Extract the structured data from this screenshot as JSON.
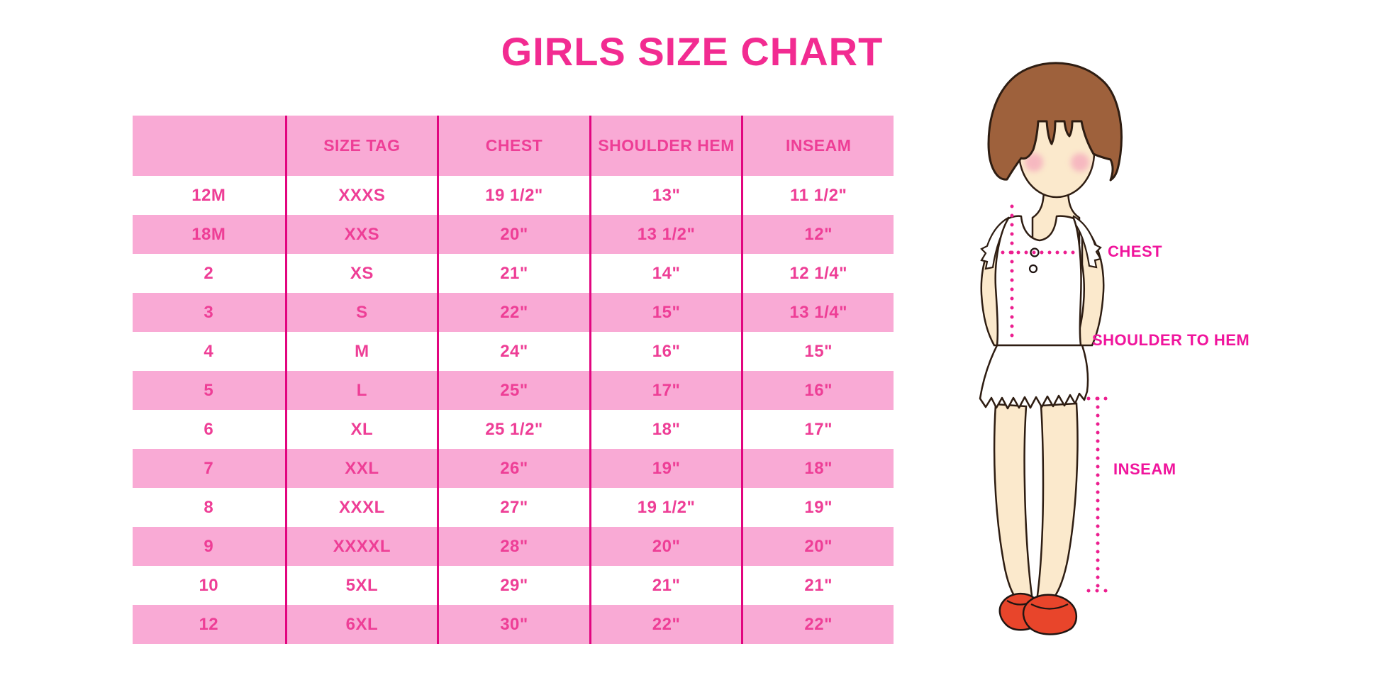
{
  "title": "GIRLS SIZE CHART",
  "chart_data": {
    "type": "table",
    "title": "GIRLS SIZE CHART",
    "columns": [
      "",
      "SIZE TAG",
      "CHEST",
      "SHOULDER HEM",
      "INSEAM"
    ],
    "rows": [
      [
        "12M",
        "XXXS",
        "19 1/2\"",
        "13\"",
        "11 1/2\""
      ],
      [
        "18M",
        "XXS",
        "20\"",
        "13 1/2\"",
        "12\""
      ],
      [
        "2",
        "XS",
        "21\"",
        "14\"",
        "12 1/4\""
      ],
      [
        "3",
        "S",
        "22\"",
        "15\"",
        "13 1/4\""
      ],
      [
        "4",
        "M",
        "24\"",
        "16\"",
        "15\""
      ],
      [
        "5",
        "L",
        "25\"",
        "17\"",
        "16\""
      ],
      [
        "6",
        "XL",
        "25 1/2\"",
        "18\"",
        "17\""
      ],
      [
        "7",
        "XXL",
        "26\"",
        "19\"",
        "18\""
      ],
      [
        "8",
        "XXXL",
        "27\"",
        "19 1/2\"",
        "19\""
      ],
      [
        "9",
        "XXXXL",
        "28\"",
        "20\"",
        "20\""
      ],
      [
        "10",
        "5XL",
        "29\"",
        "21\"",
        "21\""
      ],
      [
        "12",
        "6XL",
        "30\"",
        "22\"",
        "22\""
      ]
    ],
    "row_stripe_pattern": "header pink, then alternating white/pink starting with white",
    "legend_position": "none",
    "grid": "vertical magenta dividers only"
  },
  "measurement_labels": {
    "chest": "CHEST",
    "shoulder_to_hem": "SHOULDER TO HEM",
    "inseam": "INSEAM"
  },
  "colors": {
    "row_pink": "#F9AAD5",
    "table_text_pink": "#EE3E96",
    "divider_pink": "#E2057F",
    "title_pink": "#F22B91",
    "label_magenta": "#F0149C",
    "dotted_line_magenta": "#EC1E8F",
    "hair_brown": "#9E613C",
    "skin": "#FBE9CC",
    "blush": "#F5A8BC",
    "shoe_red": "#E8452B"
  }
}
